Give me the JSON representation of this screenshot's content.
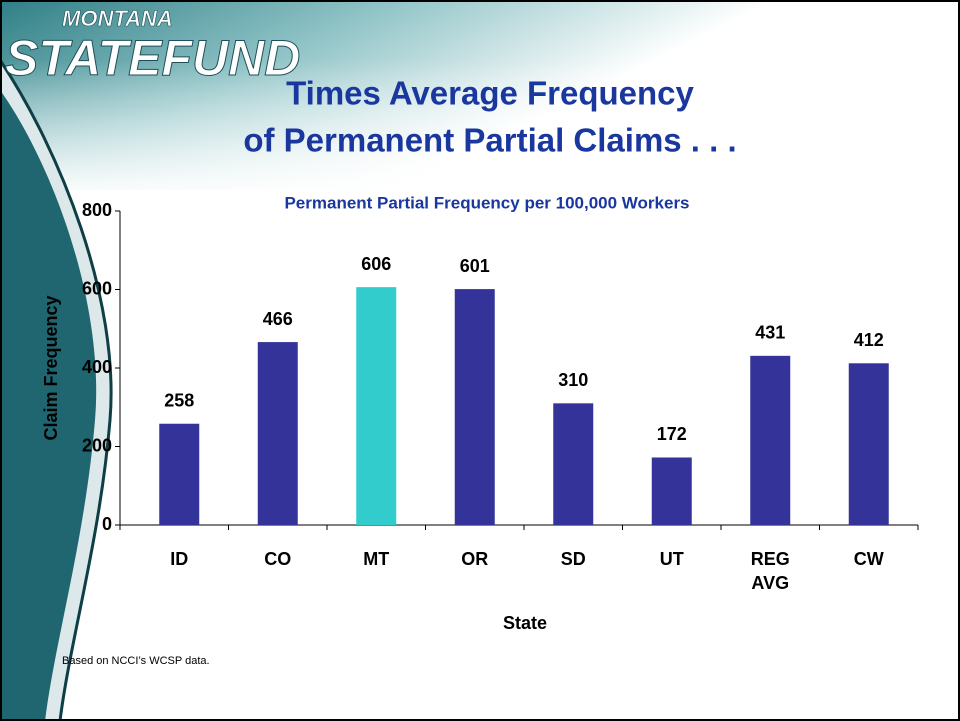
{
  "logo": {
    "top": "MONTANA",
    "main": "STATEFUND"
  },
  "footnote": "Based on NCCI’s WCSP data.",
  "chart_data": {
    "type": "bar",
    "title": [
      "Times Average Frequency",
      "of Permanent Partial Claims . . ."
    ],
    "subtitle": "Permanent Partial Frequency per 100,000 Workers",
    "x_label": "State",
    "y_label": "Claim Frequency",
    "categories": [
      "ID",
      "CO",
      "MT",
      "OR",
      "SD",
      "UT",
      "REG AVG",
      "CW"
    ],
    "values": [
      258,
      466,
      606,
      601,
      310,
      172,
      431,
      412
    ],
    "colors": [
      "#333399",
      "#333399",
      "#33cccc",
      "#333399",
      "#333399",
      "#333399",
      "#333399",
      "#333399"
    ],
    "ylim": [
      0,
      800
    ],
    "yticks": [
      0,
      200,
      400,
      600,
      800
    ],
    "grid": false
  }
}
